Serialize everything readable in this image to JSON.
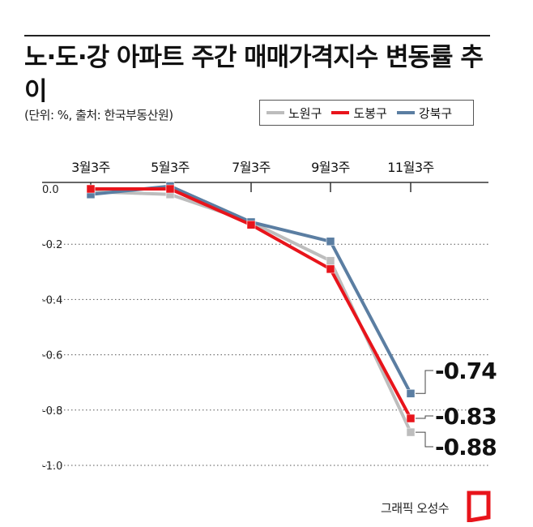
{
  "title": "노·도·강 아파트 주간 매매가격지수 변동률 추이",
  "unit_note": "(단위: %, 출처: 한국부동산원)",
  "credit": "그래픽 오성수",
  "chart_data": {
    "type": "line",
    "categories": [
      "3월3주",
      "5월3주",
      "7월3주",
      "9월3주",
      "11월3주"
    ],
    "ylim": [
      -1.0,
      0.0
    ],
    "yticks": [
      0.0,
      -0.2,
      -0.4,
      -0.6,
      -0.8,
      -1.0
    ],
    "ytick_labels": [
      "0.0",
      "-0.2",
      "-0.4",
      "-0.6",
      "-0.8",
      "-1.0"
    ],
    "grid": true,
    "legend_position": "top-right",
    "series": [
      {
        "name": "노원구",
        "color": "#bdbdbd",
        "values": [
          -0.01,
          -0.02,
          -0.12,
          -0.26,
          -0.88
        ]
      },
      {
        "name": "도봉구",
        "color": "#e8141b",
        "values": [
          0.0,
          0.0,
          -0.13,
          -0.29,
          -0.83
        ]
      },
      {
        "name": "강북구",
        "color": "#5b7ea2",
        "values": [
          -0.02,
          0.01,
          -0.12,
          -0.19,
          -0.74
        ]
      }
    ],
    "annotations": [
      {
        "series": "강북구",
        "text": "-0.74"
      },
      {
        "series": "도봉구",
        "text": "-0.83"
      },
      {
        "series": "노원구",
        "text": "-0.88"
      }
    ]
  }
}
